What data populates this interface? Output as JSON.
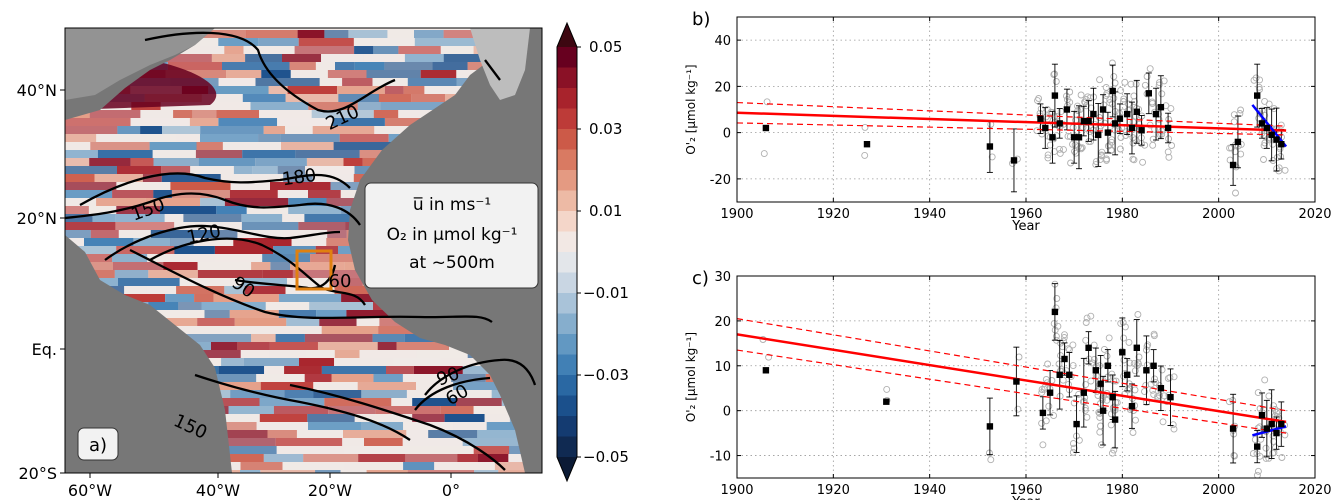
{
  "colors": {
    "land": "#777777",
    "shelf": "#bdbdbd",
    "regression": "#ff0000",
    "recent_trend": "#0000ff",
    "profile_points": "#b0b0b0",
    "box": "#e08010"
  },
  "map": {
    "panel_label": "a)",
    "legend_lines": [
      "u̅ in ms⁻¹",
      "O₂ in μmol kg⁻¹",
      "at ~500m"
    ],
    "lon_ticks": [
      "60°W",
      "40°W",
      "20°W",
      "0°"
    ],
    "lat_ticks": [
      "40°N",
      "20°N",
      "Eq.",
      "20°S"
    ],
    "contour_labels": [
      "210",
      "180",
      "150",
      "120",
      "90",
      "60",
      "90",
      "60",
      "150"
    ],
    "colorbar": {
      "ticks": [
        "0.05",
        "0.03",
        "0.01",
        "−0.01",
        "−0.03",
        "−0.05"
      ],
      "colors": [
        "#3d0711",
        "#67001f",
        "#8a1126",
        "#a8232c",
        "#bd3b38",
        "#cc5a48",
        "#d97a62",
        "#e49a82",
        "#edbaa5",
        "#f4d6c9",
        "#f2e8e4",
        "#e3e6ea",
        "#c9d6e3",
        "#a9c3d9",
        "#86aecd",
        "#6298c2",
        "#4180b5",
        "#2a68a3",
        "#1b508c",
        "#143b71",
        "#102a52",
        "#0b1a35"
      ]
    }
  },
  "chart_data": [
    {
      "type": "scatter",
      "panel_label": "b)",
      "xlabel": "Year",
      "ylabel": "O'₂ [μmol kg⁻¹]",
      "xlim": [
        1900,
        2020
      ],
      "ylim": [
        -30,
        50
      ],
      "xticks": [
        1900,
        1920,
        1940,
        1960,
        1980,
        2000,
        2020
      ],
      "yticks": [
        -20,
        0,
        20,
        40
      ],
      "grid": true,
      "series": [
        {
          "marker": "square",
          "color": "#000000",
          "points": [
            {
              "x": 1906,
              "y": 2
            },
            {
              "x": 1927,
              "y": -5
            },
            {
              "x": 1952.5,
              "y": -6
            },
            {
              "x": 1957.5,
              "y": -12
            },
            {
              "x": 1963,
              "y": 6
            },
            {
              "x": 1964,
              "y": 2
            },
            {
              "x": 1965.5,
              "y": -2
            },
            {
              "x": 1966,
              "y": 16
            },
            {
              "x": 1967,
              "y": 4
            },
            {
              "x": 1968.5,
              "y": 10
            },
            {
              "x": 1970,
              "y": -2
            },
            {
              "x": 1971,
              "y": -2
            },
            {
              "x": 1972,
              "y": 5
            },
            {
              "x": 1973,
              "y": 5
            },
            {
              "x": 1974,
              "y": 8
            },
            {
              "x": 1975,
              "y": -1
            },
            {
              "x": 1976,
              "y": 10
            },
            {
              "x": 1977,
              "y": 0
            },
            {
              "x": 1978,
              "y": 18
            },
            {
              "x": 1978.5,
              "y": 4
            },
            {
              "x": 1979.5,
              "y": 6
            },
            {
              "x": 1981,
              "y": 8
            },
            {
              "x": 1982,
              "y": 2
            },
            {
              "x": 1983,
              "y": 9
            },
            {
              "x": 1984,
              "y": 1
            },
            {
              "x": 1985.5,
              "y": 17
            },
            {
              "x": 1987,
              "y": 8
            },
            {
              "x": 1988,
              "y": 11
            },
            {
              "x": 1989.5,
              "y": 2
            },
            {
              "x": 2003,
              "y": -14
            },
            {
              "x": 2004,
              "y": -4
            },
            {
              "x": 2008,
              "y": 16
            },
            {
              "x": 2009,
              "y": 4
            },
            {
              "x": 2010,
              "y": 2
            },
            {
              "x": 2011,
              "y": -1
            },
            {
              "x": 2012,
              "y": -3
            },
            {
              "x": 2013,
              "y": -5
            }
          ]
        }
      ],
      "fits": [
        {
          "x": [
            1900,
            2014
          ],
          "y": [
            8.6,
            0.9
          ],
          "style": "solid"
        },
        {
          "x": [
            1900,
            2014
          ],
          "y": [
            13,
            2.8
          ],
          "style": "dashed"
        },
        {
          "x": [
            1900,
            2014
          ],
          "y": [
            4.2,
            -1.0
          ],
          "style": "dashed"
        },
        {
          "x": [
            2007,
            2014
          ],
          "y": [
            12,
            -6
          ],
          "style": "solid",
          "color": "recent"
        }
      ]
    },
    {
      "type": "scatter",
      "panel_label": "c)",
      "xlabel": "Year",
      "ylabel": "O'₂ [μmol kg⁻¹]",
      "xlim": [
        1900,
        2020
      ],
      "ylim": [
        -15,
        30
      ],
      "xticks": [
        1900,
        1920,
        1940,
        1960,
        1980,
        2000,
        2020
      ],
      "yticks": [
        -10,
        0,
        10,
        20,
        30
      ],
      "grid": true,
      "series": [
        {
          "marker": "square",
          "color": "#000000",
          "points": [
            {
              "x": 1906,
              "y": 9
            },
            {
              "x": 1931,
              "y": 2
            },
            {
              "x": 1952.5,
              "y": -3.5
            },
            {
              "x": 1958,
              "y": 6.5
            },
            {
              "x": 1963.5,
              "y": -0.5
            },
            {
              "x": 1965,
              "y": 4
            },
            {
              "x": 1966,
              "y": 22
            },
            {
              "x": 1967,
              "y": 8
            },
            {
              "x": 1968,
              "y": 11.5
            },
            {
              "x": 1969,
              "y": 8
            },
            {
              "x": 1970.5,
              "y": -3
            },
            {
              "x": 1972,
              "y": 4
            },
            {
              "x": 1973,
              "y": 14
            },
            {
              "x": 1974.5,
              "y": 9
            },
            {
              "x": 1975.5,
              "y": 6
            },
            {
              "x": 1976,
              "y": 0
            },
            {
              "x": 1977,
              "y": 10
            },
            {
              "x": 1978,
              "y": 3
            },
            {
              "x": 1978.5,
              "y": -2
            },
            {
              "x": 1980,
              "y": 13
            },
            {
              "x": 1981,
              "y": 8
            },
            {
              "x": 1982,
              "y": 1
            },
            {
              "x": 1983,
              "y": 14
            },
            {
              "x": 1985,
              "y": 9
            },
            {
              "x": 1986.5,
              "y": 10
            },
            {
              "x": 1988,
              "y": 5
            },
            {
              "x": 1990,
              "y": 3
            },
            {
              "x": 2003,
              "y": -4
            },
            {
              "x": 2008,
              "y": -8
            },
            {
              "x": 2009,
              "y": -1
            },
            {
              "x": 2010,
              "y": -4
            },
            {
              "x": 2011,
              "y": -3
            },
            {
              "x": 2012,
              "y": -5
            },
            {
              "x": 2013,
              "y": -3
            }
          ]
        }
      ],
      "fits": [
        {
          "x": [
            1900,
            2014
          ],
          "y": [
            17,
            -2.5
          ],
          "style": "solid"
        },
        {
          "x": [
            1900,
            2014
          ],
          "y": [
            20.5,
            0
          ],
          "style": "dashed"
        },
        {
          "x": [
            1900,
            2014
          ],
          "y": [
            13.5,
            -5
          ],
          "style": "dashed"
        },
        {
          "x": [
            2007,
            2014
          ],
          "y": [
            -5.5,
            -3.5
          ],
          "style": "solid",
          "color": "recent"
        }
      ]
    }
  ]
}
